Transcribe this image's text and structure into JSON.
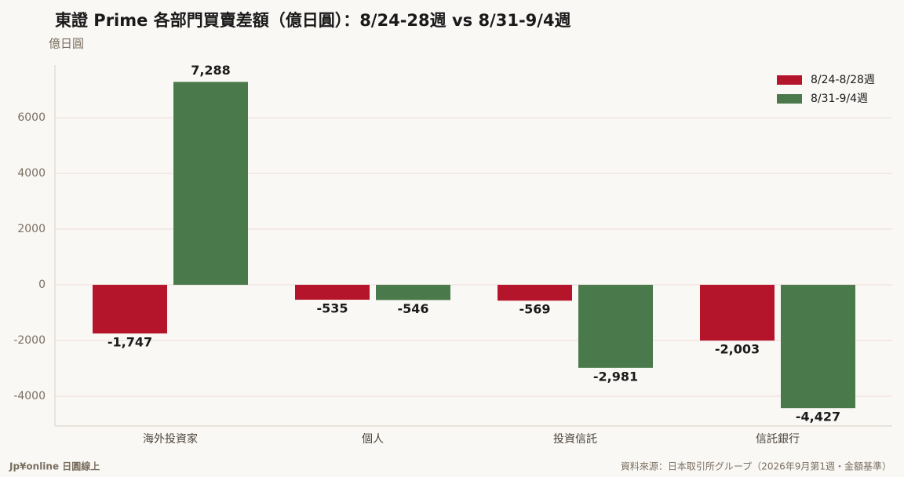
{
  "chart_data": {
    "type": "bar",
    "title": "東證 Prime 各部門買賣差額（億日圓）：8/24-28週 vs 8/31-9/4週",
    "y_label": "億日圓",
    "categories": [
      "海外投資家",
      "個人",
      "投資信託",
      "信託銀行"
    ],
    "series": [
      {
        "name": "8/24-8/28週",
        "color": "#b5152b",
        "values": [
          -1747,
          -535,
          -569,
          -2003
        ],
        "value_labels": [
          "-1,747",
          "-535",
          "-569",
          "-2,003"
        ]
      },
      {
        "name": "8/31-9/4週",
        "color": "#4a7a4b",
        "values": [
          7288,
          -546,
          -2981,
          -4427
        ],
        "value_labels": [
          "7,288",
          "-546",
          "-2,981",
          "-4,427"
        ]
      }
    ],
    "ylim": [
      -5070,
      7890
    ],
    "yticks": [
      -4000,
      -2000,
      0,
      2000,
      4000,
      6000
    ],
    "grid": true,
    "legend": "upper right"
  },
  "footer": {
    "brand": "Jp¥online 日圓線上",
    "source": "資料來源：日本取引所グループ（2026年9月第1週・金額基準）"
  }
}
